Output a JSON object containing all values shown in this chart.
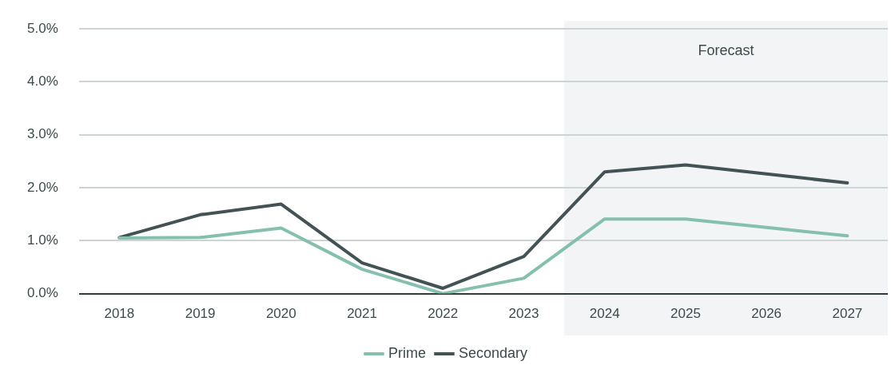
{
  "chart_data": {
    "type": "line",
    "categories": [
      "2018",
      "2019",
      "2020",
      "2021",
      "2022",
      "2023",
      "2024",
      "2025",
      "2026",
      "2027"
    ],
    "series": [
      {
        "name": "Prime",
        "color": "#85bfae",
        "values": [
          1.05,
          1.06,
          1.24,
          0.46,
          0.0,
          0.29,
          1.41,
          1.41,
          1.25,
          1.09
        ]
      },
      {
        "name": "Secondary",
        "color": "#435254",
        "values": [
          1.06,
          1.49,
          1.69,
          0.58,
          0.1,
          0.7,
          2.3,
          2.43,
          2.26,
          2.09
        ]
      }
    ],
    "ylim": [
      0,
      5
    ],
    "yticks": [
      {
        "value": 0,
        "label": "0.0%"
      },
      {
        "value": 1,
        "label": "1.0%"
      },
      {
        "value": 2,
        "label": "2.0%"
      },
      {
        "value": 3,
        "label": "3.0%"
      },
      {
        "value": 4,
        "label": "4.0%"
      },
      {
        "value": 5,
        "label": "5.0%"
      }
    ],
    "bands": [
      {
        "axis": "x",
        "from": "2024",
        "to": "2027",
        "label": "Forecast",
        "color": "#f3f4f6"
      }
    ],
    "grid": "y",
    "legend": "bottom",
    "marker": "none",
    "line_style": "solid"
  }
}
